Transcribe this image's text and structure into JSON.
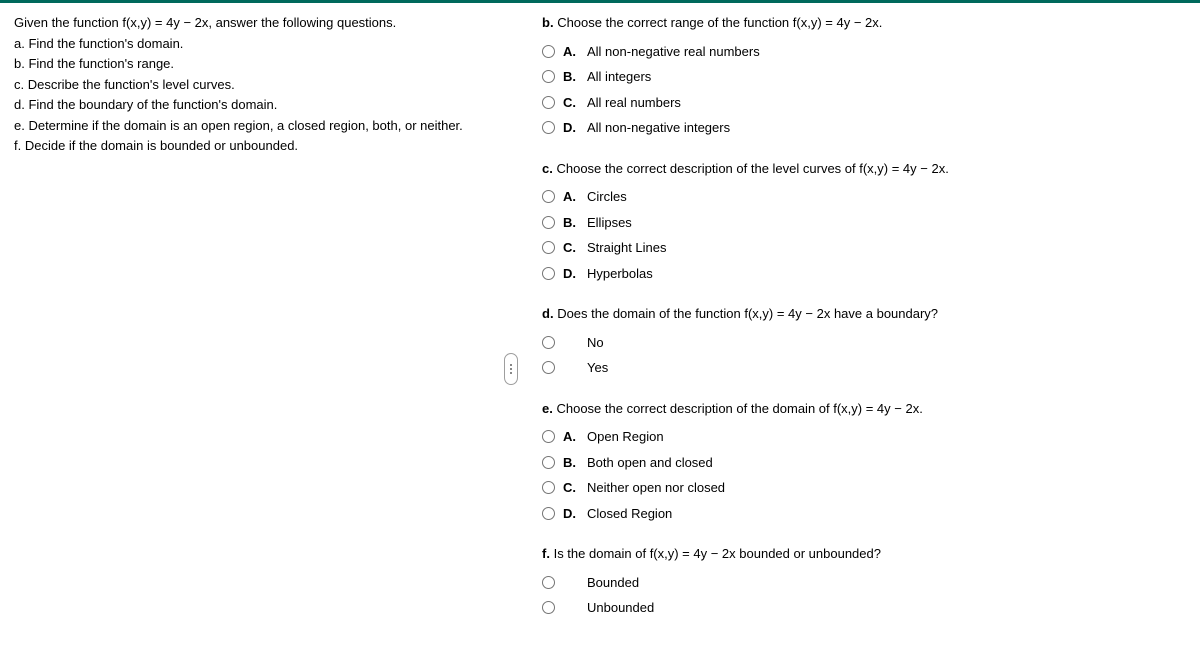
{
  "left": {
    "intro": "Given the function f(x,y) = 4y − 2x, answer the following questions.",
    "a": "a. Find the function's domain.",
    "b": "b. Find the function's range.",
    "c": "c. Describe the function's level curves.",
    "d": "d. Find the boundary of the function's domain.",
    "e": "e. Determine if the domain is an open region, a closed region, both, or neither.",
    "f": "f. Decide if the domain is bounded or unbounded."
  },
  "q_b": {
    "label": "b.",
    "prompt": "Choose the correct range of the function f(x,y) = 4y − 2x.",
    "options": [
      {
        "letter": "A.",
        "text": "All non-negative real numbers"
      },
      {
        "letter": "B.",
        "text": "All integers"
      },
      {
        "letter": "C.",
        "text": "All real numbers"
      },
      {
        "letter": "D.",
        "text": "All non-negative integers"
      }
    ]
  },
  "q_c": {
    "label": "c.",
    "prompt": "Choose the correct description of the level curves of f(x,y) = 4y − 2x.",
    "options": [
      {
        "letter": "A.",
        "text": "Circles"
      },
      {
        "letter": "B.",
        "text": "Ellipses"
      },
      {
        "letter": "C.",
        "text": "Straight Lines"
      },
      {
        "letter": "D.",
        "text": "Hyperbolas"
      }
    ]
  },
  "q_d": {
    "label": "d.",
    "prompt": "Does the domain of the function f(x,y) = 4y − 2x have a boundary?",
    "options": [
      {
        "letter": "",
        "text": "No"
      },
      {
        "letter": "",
        "text": "Yes"
      }
    ]
  },
  "q_e": {
    "label": "e.",
    "prompt": "Choose the correct description of the domain of f(x,y) = 4y − 2x.",
    "options": [
      {
        "letter": "A.",
        "text": "Open Region"
      },
      {
        "letter": "B.",
        "text": "Both open and closed"
      },
      {
        "letter": "C.",
        "text": "Neither open nor closed"
      },
      {
        "letter": "D.",
        "text": "Closed Region"
      }
    ]
  },
  "q_f": {
    "label": "f.",
    "prompt": "Is the domain of f(x,y) = 4y − 2x bounded or unbounded?",
    "options": [
      {
        "letter": "",
        "text": "Bounded"
      },
      {
        "letter": "",
        "text": "Unbounded"
      }
    ]
  }
}
